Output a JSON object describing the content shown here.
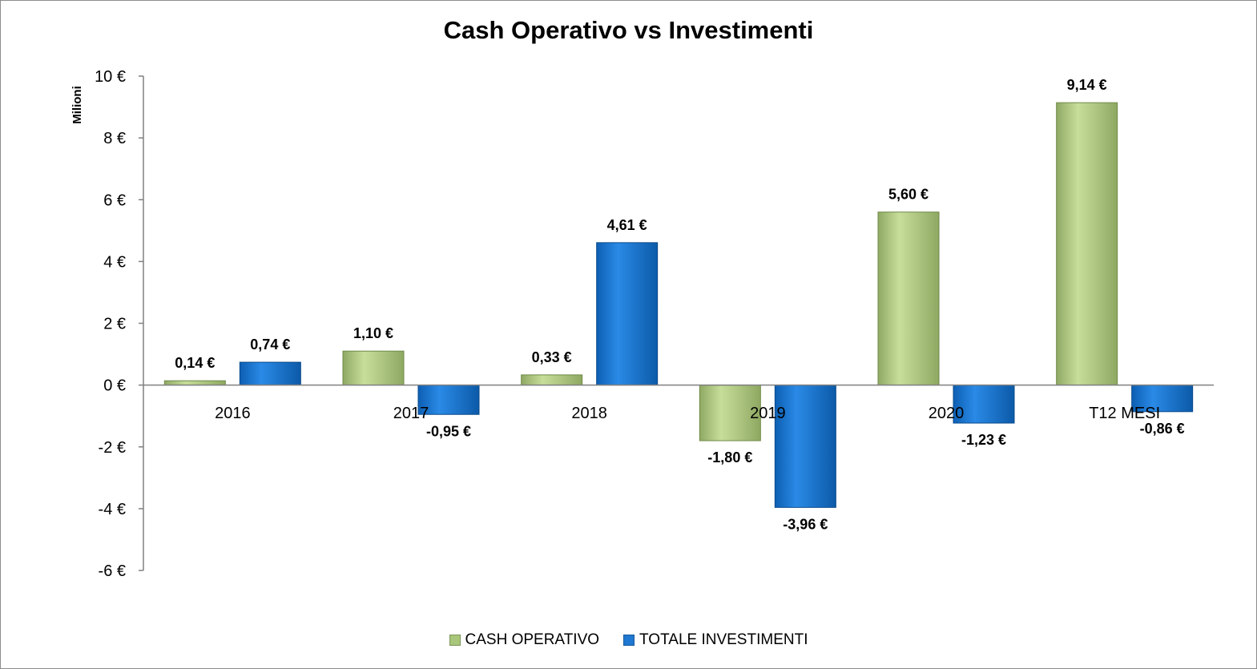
{
  "chart_data": {
    "type": "bar",
    "title": "Cash Operativo vs Investimenti",
    "ylabel": "Milioni",
    "xlabel": "",
    "ylim": [
      -6,
      10
    ],
    "yticks": [
      10,
      8,
      6,
      4,
      2,
      0,
      -2,
      -4,
      -6
    ],
    "ytick_labels": [
      "10 €",
      "8 €",
      "6 €",
      "4 €",
      "2 €",
      "0 €",
      "-2 €",
      "-4 €",
      "-6 €"
    ],
    "categories": [
      "2016",
      "2017",
      "2018",
      "2019",
      "2020",
      "T12 MESI"
    ],
    "series": [
      {
        "name": "CASH OPERATIVO",
        "color": "#a9c77a",
        "values": [
          0.14,
          1.1,
          0.33,
          -1.8,
          5.6,
          9.14
        ],
        "labels": [
          "0,14 €",
          "1,10 €",
          "0,33 €",
          "-1,80 €",
          "5,60 €",
          "9,14 €"
        ]
      },
      {
        "name": "TOTALE INVESTIMENTI",
        "color": "#1f78d1",
        "values": [
          0.74,
          -0.95,
          4.61,
          -3.96,
          -1.23,
          -0.86
        ],
        "labels": [
          "0,74 €",
          "-0,95 €",
          "4,61 €",
          "-3,96 €",
          "-1,23 €",
          "-0,86 €"
        ]
      }
    ],
    "grid": false,
    "legend_position": "bottom"
  }
}
